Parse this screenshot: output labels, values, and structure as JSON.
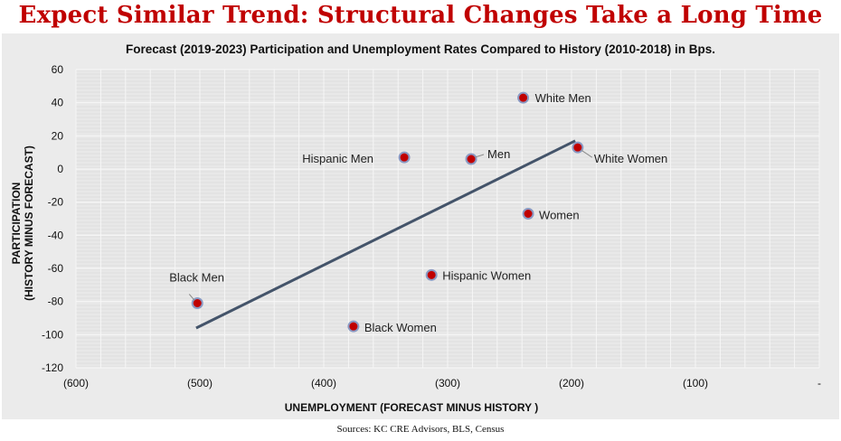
{
  "page": {
    "headline": "Expect Similar Trend: Structural Changes Take a Long Time",
    "sources": "Sources: KC CRE Advisors, BLS, Census"
  },
  "chart_data": {
    "type": "scatter",
    "title": "Forecast (2019-2023) Participation and Unemployment Rates Compared to History (2010-2018) in Bps.",
    "xlabel": "UNEMPLOYMENT (FORECAST MINUS HISTORY )",
    "ylabel_line1": "PARTICIPATION",
    "ylabel_line2": "(HISTORY MINUS FORECAST)",
    "xlim": [
      -600,
      0
    ],
    "ylim": [
      -120,
      60
    ],
    "x_ticks": [
      -600,
      -500,
      -400,
      -300,
      -200,
      -100,
      0
    ],
    "x_tick_labels": [
      "(600)",
      "(500)",
      "(400)",
      "(300)",
      "(200)",
      "(100)",
      "-"
    ],
    "y_ticks": [
      -120,
      -100,
      -80,
      -60,
      -40,
      -20,
      0,
      20,
      40,
      60
    ],
    "y_tick_labels": [
      "-120",
      "-100",
      "-80",
      "-60",
      "-40",
      "-20",
      "0",
      "20",
      "40",
      "60"
    ],
    "grid": true,
    "points": [
      {
        "label": "White Men",
        "x": -239,
        "y": 43
      },
      {
        "label": "Hispanic Men",
        "x": -335,
        "y": 7
      },
      {
        "label": "Men",
        "x": -281,
        "y": 6
      },
      {
        "label": "White Women",
        "x": -195,
        "y": 13
      },
      {
        "label": "Women",
        "x": -235,
        "y": -27
      },
      {
        "label": "Hispanic Women",
        "x": -313,
        "y": -64
      },
      {
        "label": "Black Men",
        "x": -502,
        "y": -81
      },
      {
        "label": "Black Women",
        "x": -376,
        "y": -95
      }
    ],
    "trendline": {
      "x": [
        -503,
        -197
      ],
      "y": [
        -96,
        17
      ]
    },
    "marker_color": "#c00000",
    "marker_edge": "#8a9ac4",
    "trendline_color": "#44546a"
  }
}
